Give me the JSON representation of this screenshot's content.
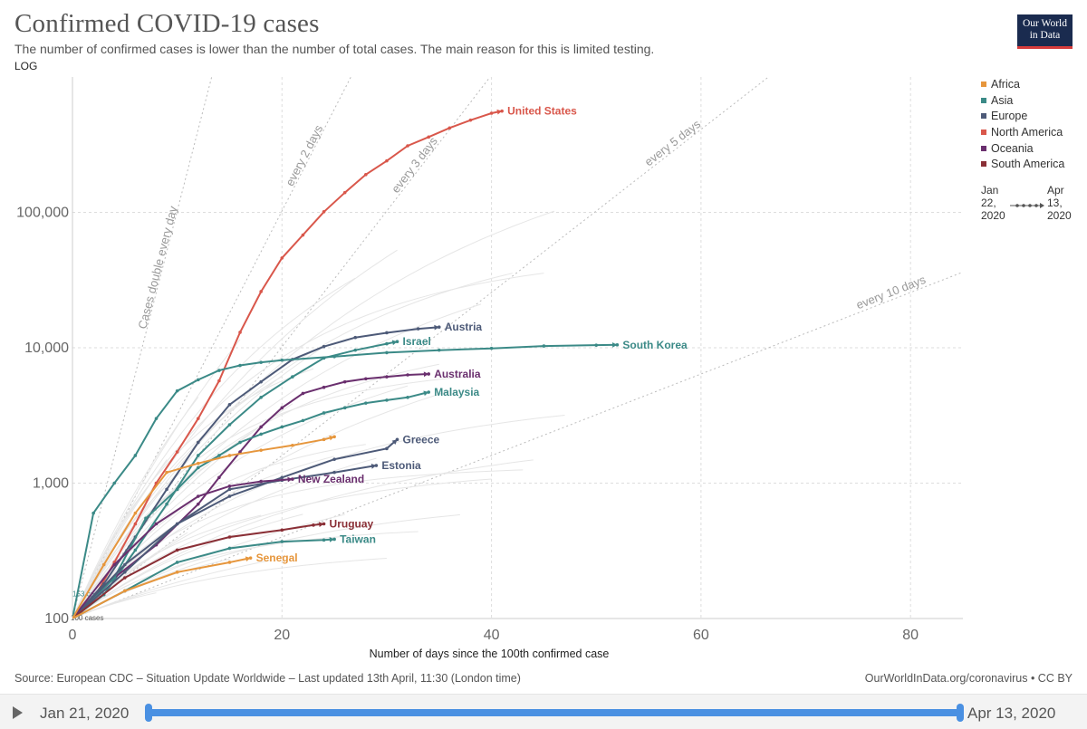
{
  "header": {
    "title": "Confirmed COVID-19 cases",
    "subtitle": "The number of confirmed cases is lower than the number of total cases. The main reason for this is limited testing.",
    "scale_label": "LOG"
  },
  "logo": {
    "line1": "Our World",
    "line2": "in Data"
  },
  "legend": {
    "items": [
      {
        "label": "Africa",
        "color": "#e6963c"
      },
      {
        "label": "Asia",
        "color": "#3b8a87"
      },
      {
        "label": "Europe",
        "color": "#4d5a78"
      },
      {
        "label": "North America",
        "color": "#d9574b"
      },
      {
        "label": "Oceania",
        "color": "#6a2f6e"
      },
      {
        "label": "South America",
        "color": "#8a2f36"
      }
    ]
  },
  "time_legend": {
    "start": "Jan\n22,\n2020",
    "end": "Apr\n13,\n2020"
  },
  "footer": {
    "source": "Source: European CDC – Situation Update Worldwide – Last updated 13th April, 11:30 (London time)",
    "credit": "OurWorldInData.org/coronavirus • CC BY"
  },
  "timeline": {
    "start_label": "Jan 21, 2020",
    "end_label": "Apr 13, 2020"
  },
  "chart_data": {
    "type": "line",
    "yscale": "log",
    "xlabel": "Number of days since the 100th confirmed case",
    "ylabel": "",
    "xlim": [
      0,
      85
    ],
    "ylim": [
      100,
      1000000
    ],
    "x_ticks": [
      0,
      20,
      40,
      60,
      80
    ],
    "y_ticks": [
      {
        "value": 100,
        "label": "100"
      },
      {
        "value": 1000,
        "label": "1,000"
      },
      {
        "value": 10000,
        "label": "10,000"
      },
      {
        "value": 100000,
        "label": "100,000"
      }
    ],
    "grid": true,
    "reference_lines": [
      {
        "label": "Cases double every day",
        "doubling_days": 1
      },
      {
        "label": "every 2 days",
        "doubling_days": 2
      },
      {
        "label": "every 3 days",
        "doubling_days": 3
      },
      {
        "label": "every 5 days",
        "doubling_days": 5
      },
      {
        "label": "every 10 days",
        "doubling_days": 10
      }
    ],
    "start_annotations": [
      "100 cases",
      "153 cases"
    ],
    "series": [
      {
        "name": "United States",
        "region": "North America",
        "color": "#d9574b",
        "x": [
          0,
          2,
          4,
          6,
          8,
          10,
          12,
          14,
          16,
          18,
          20,
          22,
          24,
          26,
          28,
          30,
          32,
          34,
          36,
          38,
          40,
          41
        ],
        "y": [
          100,
          140,
          260,
          500,
          1000,
          1700,
          3000,
          5700,
          13000,
          26000,
          46000,
          68000,
          101000,
          140000,
          190000,
          240000,
          310000,
          360000,
          420000,
          480000,
          540000,
          560000
        ]
      },
      {
        "name": "Austria",
        "region": "Europe",
        "color": "#4d5a78",
        "x": [
          0,
          3,
          6,
          9,
          12,
          15,
          18,
          21,
          24,
          27,
          30,
          33,
          35
        ],
        "y": [
          100,
          180,
          400,
          900,
          2000,
          3800,
          5600,
          8200,
          10200,
          11900,
          12900,
          13800,
          14200
        ]
      },
      {
        "name": "Israel",
        "region": "Asia",
        "color": "#3b8a87",
        "x": [
          0,
          3,
          6,
          9,
          12,
          15,
          18,
          21,
          24,
          27,
          30,
          31
        ],
        "y": [
          100,
          150,
          320,
          700,
          1600,
          2700,
          4300,
          6100,
          8400,
          9600,
          10700,
          11100
        ]
      },
      {
        "name": "South Korea",
        "region": "Asia",
        "color": "#3b8a87",
        "x": [
          0,
          2,
          4,
          6,
          8,
          10,
          12,
          14,
          16,
          18,
          20,
          25,
          30,
          35,
          40,
          45,
          50,
          52
        ],
        "y": [
          100,
          600,
          1000,
          1600,
          3000,
          4800,
          5800,
          6800,
          7400,
          7800,
          8100,
          8600,
          9200,
          9600,
          9900,
          10300,
          10450,
          10500
        ]
      },
      {
        "name": "Australia",
        "region": "Oceania",
        "color": "#6a2f6e",
        "x": [
          0,
          4,
          8,
          12,
          14,
          16,
          18,
          20,
          22,
          24,
          26,
          28,
          30,
          32,
          34
        ],
        "y": [
          100,
          200,
          350,
          700,
          1100,
          1700,
          2600,
          3600,
          4600,
          5100,
          5600,
          5900,
          6100,
          6300,
          6400
        ]
      },
      {
        "name": "Malaysia",
        "region": "Asia",
        "color": "#3b8a87",
        "x": [
          0,
          4,
          7,
          10,
          12,
          14,
          16,
          18,
          20,
          22,
          24,
          26,
          28,
          30,
          32,
          34
        ],
        "y": [
          100,
          200,
          550,
          900,
          1300,
          1600,
          2000,
          2300,
          2600,
          2900,
          3300,
          3600,
          3900,
          4100,
          4300,
          4700
        ]
      },
      {
        "name": "Greece",
        "region": "Europe",
        "color": "#4d5a78",
        "x": [
          0,
          5,
          10,
          15,
          20,
          25,
          30,
          31
        ],
        "y": [
          100,
          250,
          500,
          800,
          1100,
          1500,
          1800,
          2100
        ]
      },
      {
        "name": "Estonia",
        "region": "Europe",
        "color": "#4d5a78",
        "x": [
          0,
          5,
          10,
          15,
          20,
          25,
          29
        ],
        "y": [
          100,
          220,
          500,
          900,
          1050,
          1200,
          1350
        ]
      },
      {
        "name": "New Zealand",
        "region": "Oceania",
        "color": "#6a2f6e",
        "x": [
          0,
          4,
          8,
          12,
          15,
          18,
          21
        ],
        "y": [
          100,
          250,
          500,
          800,
          950,
          1030,
          1070
        ]
      },
      {
        "name": "Uruguay",
        "region": "South America",
        "color": "#8a2f36",
        "x": [
          0,
          5,
          10,
          15,
          20,
          23,
          24
        ],
        "y": [
          100,
          200,
          320,
          400,
          450,
          490,
          500
        ]
      },
      {
        "name": "Taiwan",
        "region": "Asia",
        "color": "#3b8a87",
        "x": [
          0,
          5,
          10,
          15,
          20,
          24,
          25
        ],
        "y": [
          100,
          160,
          260,
          330,
          370,
          380,
          385
        ]
      },
      {
        "name": "Senegal",
        "region": "Africa",
        "color": "#e6963c",
        "x": [
          0,
          5,
          10,
          15,
          17
        ],
        "y": [
          100,
          160,
          220,
          260,
          280
        ]
      },
      {
        "name": "",
        "region": "Africa",
        "color": "#e6963c",
        "x": [
          0,
          3,
          6,
          9,
          12,
          15,
          18,
          21,
          24,
          25
        ],
        "y": [
          100,
          250,
          600,
          1200,
          1400,
          1600,
          1750,
          1900,
          2100,
          2200
        ]
      }
    ]
  }
}
